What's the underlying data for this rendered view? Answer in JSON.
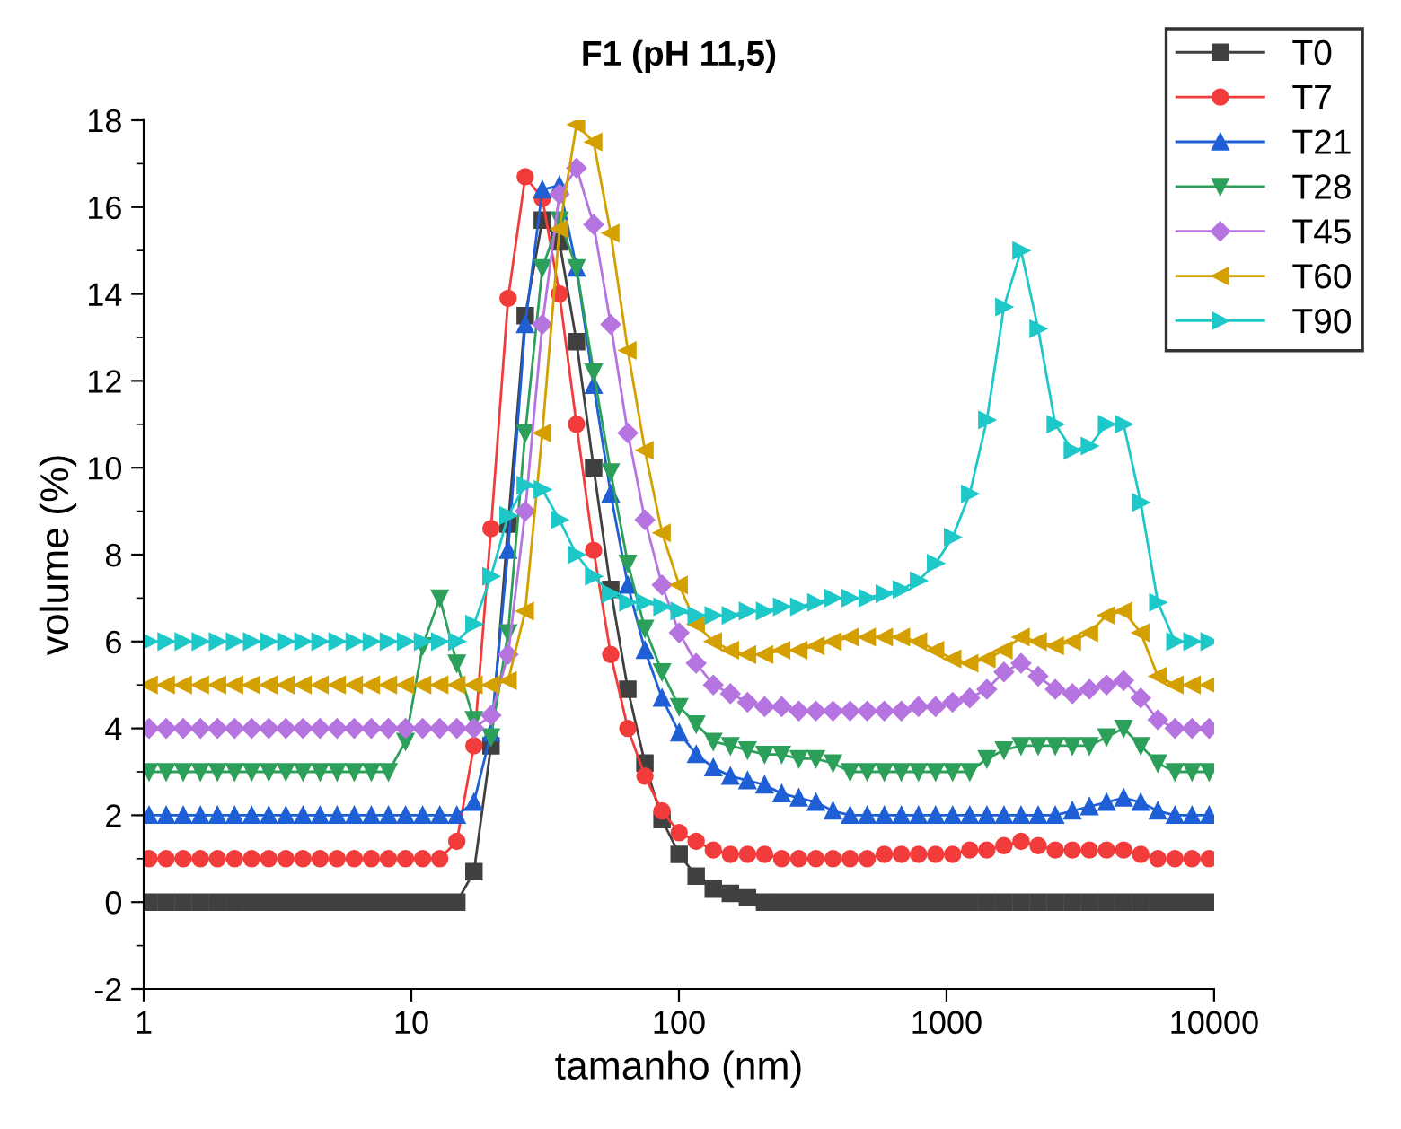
{
  "chart_data": {
    "type": "line",
    "title": "F1 (pH 11,5)",
    "xlabel": "tamanho (nm)",
    "ylabel": "volume (%)",
    "log": "x",
    "xlim": [
      1,
      10000
    ],
    "xticks": [
      1,
      10,
      100,
      1000,
      10000
    ],
    "ylim": [
      -2,
      18
    ],
    "yticks": [
      -2,
      0,
      2,
      4,
      6,
      8,
      10,
      12,
      14,
      16,
      18
    ],
    "grid": false,
    "legend": "top right",
    "line_style": "solid",
    "x": [
      1.047,
      1.213,
      1.405,
      1.628,
      1.886,
      2.185,
      2.531,
      2.932,
      3.397,
      3.935,
      4.559,
      5.281,
      6.118,
      7.088,
      8.212,
      9.513,
      11.02,
      12.77,
      14.79,
      17.14,
      19.85,
      23.0,
      26.65,
      30.87,
      35.76,
      41.43,
      48.0,
      55.6,
      64.42,
      74.63,
      86.46,
      100.2,
      116.0,
      134.4,
      155.7,
      180.4,
      209.0,
      242.1,
      280.5,
      325.0,
      376.5,
      436.2,
      505.3,
      585.4,
      678.2,
      785.7,
      910.2,
      1054,
      1221,
      1415,
      1639,
      1899,
      2200,
      2549,
      2953,
      3421,
      3963,
      4591,
      5319,
      6162,
      7139,
      8270,
      9581
    ],
    "series": [
      {
        "name": "T0",
        "color": "#404040",
        "marker": "square",
        "values": [
          0,
          0,
          0,
          0,
          0,
          0,
          0,
          0,
          0,
          0,
          0,
          0,
          0,
          0,
          0,
          0,
          0,
          0,
          0,
          0.7,
          3.6,
          8.7,
          13.5,
          15.7,
          15.2,
          12.9,
          10.0,
          7.2,
          4.9,
          3.2,
          1.9,
          1.1,
          0.6,
          0.3,
          0.2,
          0.1,
          0,
          0,
          0,
          0,
          0,
          0,
          0,
          0,
          0,
          0,
          0,
          0,
          0,
          0,
          0,
          0,
          0,
          0,
          0,
          0,
          0,
          0,
          0,
          0,
          0,
          0,
          0
        ]
      },
      {
        "name": "T7",
        "color": "#f23c3c",
        "marker": "circle",
        "values": [
          1,
          1,
          1,
          1,
          1,
          1,
          1,
          1,
          1,
          1,
          1,
          1,
          1,
          1,
          1,
          1,
          1,
          1,
          1.4,
          3.6,
          8.6,
          13.9,
          16.7,
          16.2,
          14.0,
          11.0,
          8.1,
          5.7,
          4.0,
          2.9,
          2.1,
          1.6,
          1.4,
          1.2,
          1.1,
          1.1,
          1.1,
          1.0,
          1.0,
          1.0,
          1.0,
          1.0,
          1.0,
          1.1,
          1.1,
          1.1,
          1.1,
          1.1,
          1.2,
          1.2,
          1.3,
          1.4,
          1.3,
          1.2,
          1.2,
          1.2,
          1.2,
          1.2,
          1.1,
          1.0,
          1.0,
          1.0,
          1.0
        ]
      },
      {
        "name": "T21",
        "color": "#1f5fd6",
        "marker": "triangle",
        "values": [
          2,
          2,
          2,
          2,
          2,
          2,
          2,
          2,
          2,
          2,
          2,
          2,
          2,
          2,
          2,
          2,
          2,
          2,
          2,
          2.3,
          3.9,
          8.1,
          13.3,
          16.4,
          16.5,
          14.6,
          11.9,
          9.4,
          7.3,
          5.8,
          4.7,
          3.9,
          3.4,
          3.1,
          2.9,
          2.8,
          2.7,
          2.5,
          2.4,
          2.3,
          2.1,
          2.0,
          2,
          2,
          2,
          2,
          2,
          2,
          2,
          2,
          2,
          2,
          2,
          2,
          2.1,
          2.2,
          2.3,
          2.4,
          2.3,
          2.1,
          2,
          2,
          2
        ]
      },
      {
        "name": "T28",
        "color": "#2ca05a",
        "marker": "triangle-down",
        "values": [
          3,
          3,
          3,
          3,
          3,
          3,
          3,
          3,
          3,
          3,
          3,
          3,
          3,
          3,
          3,
          3.7,
          5.9,
          7.0,
          5.5,
          4.2,
          3.8,
          6.2,
          10.8,
          14.6,
          15.7,
          14.6,
          12.2,
          9.9,
          7.8,
          6.3,
          5.3,
          4.5,
          4.1,
          3.7,
          3.6,
          3.5,
          3.4,
          3.4,
          3.3,
          3.3,
          3.2,
          3.0,
          3.0,
          3.0,
          3.0,
          3.0,
          3.0,
          3.0,
          3.0,
          3.3,
          3.5,
          3.6,
          3.6,
          3.6,
          3.6,
          3.6,
          3.8,
          4.0,
          3.6,
          3.2,
          3.0,
          3.0,
          3.0
        ]
      },
      {
        "name": "T45",
        "color": "#b574e0",
        "marker": "diamond",
        "values": [
          4,
          4,
          4,
          4,
          4,
          4,
          4,
          4,
          4,
          4,
          4,
          4,
          4,
          4,
          4,
          4,
          4,
          4,
          4,
          4,
          4.3,
          5.7,
          9.0,
          13.3,
          16.3,
          16.9,
          15.6,
          13.3,
          10.8,
          8.8,
          7.3,
          6.2,
          5.5,
          5.0,
          4.8,
          4.6,
          4.5,
          4.5,
          4.4,
          4.4,
          4.4,
          4.4,
          4.4,
          4.4,
          4.4,
          4.5,
          4.5,
          4.6,
          4.7,
          4.9,
          5.3,
          5.5,
          5.2,
          4.9,
          4.8,
          4.9,
          5.0,
          5.1,
          4.7,
          4.2,
          4.0,
          4.0,
          4.0
        ]
      },
      {
        "name": "T60",
        "color": "#d4a000",
        "marker": "triangle-left",
        "values": [
          5,
          5,
          5,
          5,
          5,
          5,
          5,
          5,
          5,
          5,
          5,
          5,
          5,
          5,
          5,
          5,
          5,
          5,
          5,
          5,
          5,
          5.1,
          6.7,
          10.8,
          15.5,
          17.9,
          17.5,
          15.4,
          12.7,
          10.4,
          8.5,
          7.3,
          6.4,
          6.0,
          5.8,
          5.7,
          5.7,
          5.8,
          5.8,
          5.9,
          6.0,
          6.1,
          6.1,
          6.1,
          6.1,
          6.0,
          5.8,
          5.6,
          5.5,
          5.6,
          5.8,
          6.1,
          6.0,
          5.9,
          6.0,
          6.2,
          6.6,
          6.7,
          6.2,
          5.2,
          5.0,
          5.0,
          5.0
        ]
      },
      {
        "name": "T90",
        "color": "#1ec8c8",
        "marker": "triangle-right",
        "values": [
          6,
          6,
          6,
          6,
          6,
          6,
          6,
          6,
          6,
          6,
          6,
          6,
          6,
          6,
          6,
          6,
          6,
          6,
          6,
          6.4,
          7.5,
          8.9,
          9.6,
          9.5,
          8.8,
          8.0,
          7.5,
          7.1,
          6.9,
          6.9,
          6.8,
          6.7,
          6.6,
          6.6,
          6.6,
          6.7,
          6.7,
          6.8,
          6.8,
          6.9,
          7.0,
          7.0,
          7.0,
          7.1,
          7.2,
          7.4,
          7.8,
          8.4,
          9.4,
          11.1,
          13.7,
          15.0,
          13.2,
          11.0,
          10.4,
          10.5,
          11.0,
          11.0,
          9.2,
          6.9,
          6.0,
          6.0,
          6.0
        ]
      }
    ]
  }
}
